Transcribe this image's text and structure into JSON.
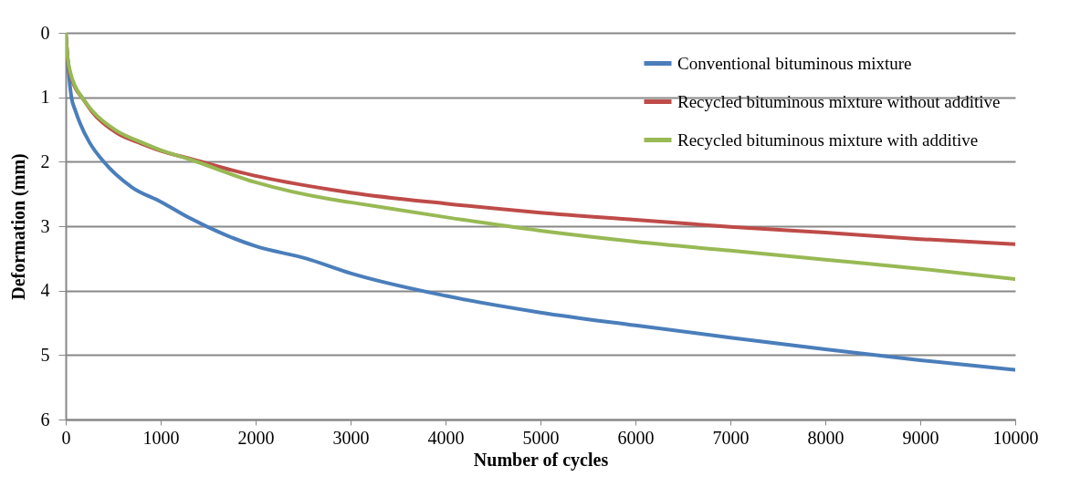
{
  "chart_data": {
    "type": "line",
    "xlabel": "Number of cycles",
    "ylabel": "Deformation (mm)",
    "xlim": [
      0,
      10000
    ],
    "xticks": [
      0,
      1000,
      2000,
      3000,
      4000,
      5000,
      6000,
      7000,
      8000,
      9000,
      10000
    ],
    "ylim": [
      6,
      0
    ],
    "yticks": [
      0,
      1,
      2,
      3,
      4,
      5,
      6
    ],
    "grid": "y",
    "legend": "top right",
    "marker": "none",
    "line_style": "solid",
    "series": [
      {
        "name": "Conventional bituminous mixture",
        "color": "#4a7ebb",
        "x": [
          0,
          30,
          60,
          100,
          150,
          250,
          400,
          700,
          1000,
          1300,
          2000,
          2530,
          3000,
          4000,
          5000,
          6000,
          7000,
          8000,
          9000,
          10000
        ],
        "values": [
          0,
          0.6,
          1.0,
          1.2,
          1.4,
          1.7,
          2.0,
          2.4,
          2.62,
          2.87,
          3.31,
          3.5,
          3.73,
          4.08,
          4.34,
          4.54,
          4.73,
          4.91,
          5.08,
          5.23
        ]
      },
      {
        "name": "Recycled bituminous mixture without additive",
        "color": "#be4b48",
        "x": [
          0,
          20,
          50,
          100,
          170,
          280,
          535,
          800,
          1000,
          1300,
          2000,
          2780,
          3000,
          4000,
          5000,
          6000,
          7000,
          8000,
          9000,
          10000
        ],
        "values": [
          0,
          0.4,
          0.65,
          0.85,
          1.0,
          1.23,
          1.55,
          1.72,
          1.83,
          1.95,
          2.22,
          2.43,
          2.48,
          2.65,
          2.79,
          2.9,
          3.01,
          3.1,
          3.2,
          3.28
        ]
      },
      {
        "name": "Recycled bituminous mixture with additive",
        "color": "#98b954",
        "x": [
          0,
          20,
          50,
          100,
          170,
          280,
          535,
          800,
          1000,
          1300,
          2000,
          2780,
          3000,
          4000,
          5000,
          6000,
          7000,
          8000,
          9000,
          10000
        ],
        "values": [
          0,
          0.38,
          0.62,
          0.83,
          1.0,
          1.21,
          1.52,
          1.7,
          1.82,
          1.96,
          2.32,
          2.58,
          2.63,
          2.86,
          3.07,
          3.24,
          3.38,
          3.52,
          3.66,
          3.82
        ]
      }
    ]
  }
}
